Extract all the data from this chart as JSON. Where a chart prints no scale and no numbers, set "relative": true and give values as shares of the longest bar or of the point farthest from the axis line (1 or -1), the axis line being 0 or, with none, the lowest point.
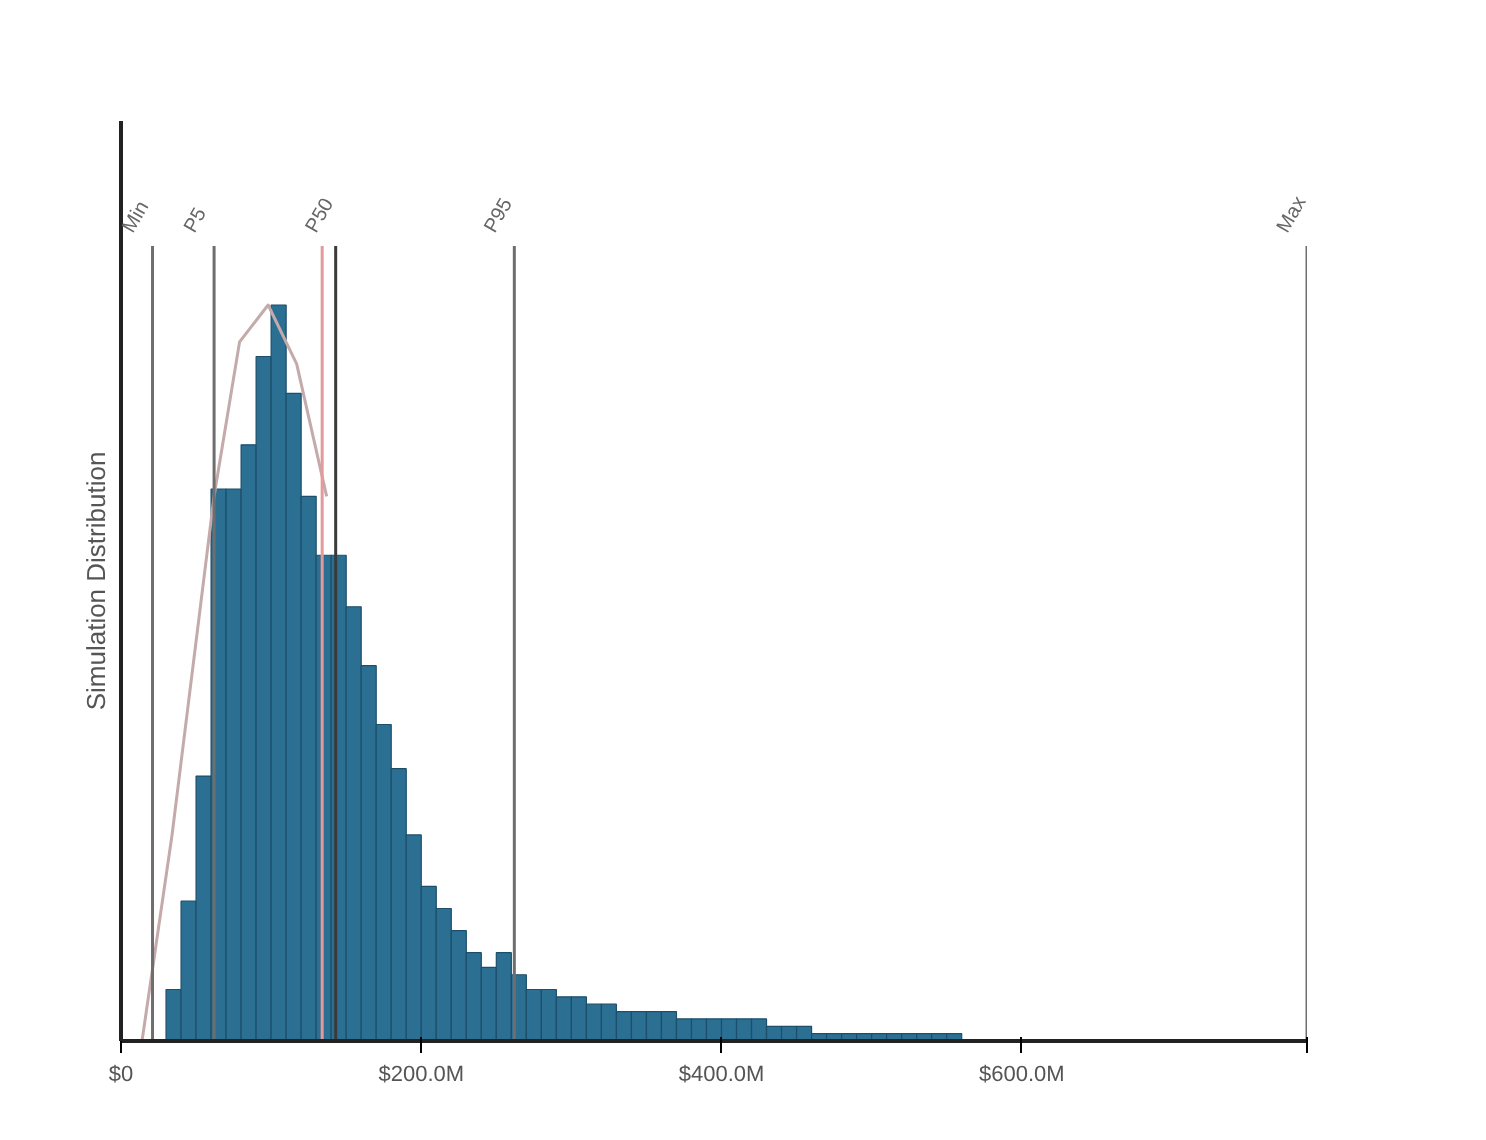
{
  "chart_data": {
    "type": "histogram",
    "ylabel": "Simulation Distribution",
    "relative": true,
    "color": "#2b6f93",
    "bins": [
      30,
      40,
      50,
      60,
      70,
      80,
      90,
      100,
      110,
      120,
      130,
      140,
      150,
      160,
      170,
      180,
      190,
      200,
      210,
      220,
      230,
      240,
      250,
      260,
      270,
      280,
      290,
      300,
      310,
      320,
      330,
      340,
      350,
      360,
      370,
      380,
      390,
      400,
      410,
      420,
      430,
      440,
      450,
      460,
      470,
      480,
      490,
      500,
      510,
      520,
      530,
      540,
      550,
      560
    ],
    "values": [
      0.07,
      0.19,
      0.36,
      0.75,
      0.75,
      0.81,
      0.93,
      1,
      0.88,
      0.74,
      0.66,
      0.66,
      0.59,
      0.51,
      0.43,
      0.37,
      0.28,
      0.21,
      0.18,
      0.15,
      0.12,
      0.1,
      0.12,
      0.09,
      0.07,
      0.07,
      0.06,
      0.06,
      0.05,
      0.05,
      0.04,
      0.04,
      0.04,
      0.04,
      0.03,
      0.03,
      0.03,
      0.03,
      0.03,
      0.03,
      0.02,
      0.02,
      0.02,
      0.01,
      0.01,
      0.01,
      0.01,
      0.01,
      0.01,
      0.01,
      0.01,
      0.01,
      0.01
    ],
    "series": [
      {
        "type": "line",
        "color": "#c4aaaa",
        "x": [
          14,
          34,
          62,
          79,
          98,
          117,
          137
        ],
        "values": [
          0,
          0.28,
          0.74,
          0.95,
          1,
          0.92,
          0.74
        ]
      }
    ],
    "xlim": [
      0,
      790
    ],
    "xticks": [
      {
        "value": 0,
        "label": "$0"
      },
      {
        "value": 200,
        "label": "$200.0M"
      },
      {
        "value": 400,
        "label": "$400.0M"
      },
      {
        "value": 600,
        "label": "$600.0M"
      },
      {
        "value": 790,
        "label": null
      }
    ],
    "ref_lines": [
      {
        "axis": "x",
        "value": 21,
        "label": "Min",
        "color": "#6e6e6e"
      },
      {
        "axis": "x",
        "value": 62,
        "label": "P5",
        "color": "#6e6e6e"
      },
      {
        "axis": "x",
        "value": 134,
        "label": null,
        "color": "#e59a9a"
      },
      {
        "axis": "x",
        "value": 143,
        "label": "P50",
        "color": "#3a3a3a"
      },
      {
        "axis": "x",
        "value": 262,
        "label": "P95",
        "color": "#6e6e6e"
      },
      {
        "axis": "x",
        "value": 790,
        "label": "Max",
        "color": "#6e6e6e"
      }
    ]
  }
}
